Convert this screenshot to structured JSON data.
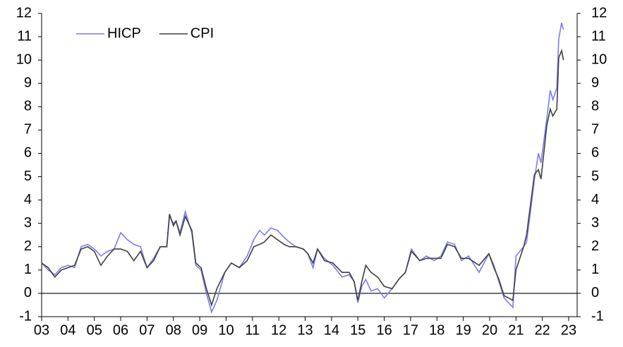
{
  "chart_data": {
    "type": "line",
    "x": [
      3.0,
      3.25,
      3.5,
      3.75,
      4.0,
      4.25,
      4.5,
      4.75,
      5.0,
      5.25,
      5.5,
      5.75,
      6.0,
      6.25,
      6.5,
      6.75,
      7.0,
      7.25,
      7.5,
      7.75,
      7.85,
      8.0,
      8.1,
      8.25,
      8.45,
      8.7,
      8.85,
      9.05,
      9.25,
      9.45,
      9.65,
      9.95,
      10.2,
      10.5,
      10.8,
      11.05,
      11.27,
      11.45,
      11.7,
      11.95,
      12.2,
      12.4,
      12.65,
      12.93,
      13.1,
      13.3,
      13.47,
      13.73,
      14.05,
      14.4,
      14.67,
      14.86,
      15.0,
      15.15,
      15.3,
      15.5,
      15.75,
      16.0,
      16.3,
      16.55,
      16.8,
      17.03,
      17.35,
      17.6,
      17.9,
      18.15,
      18.4,
      18.67,
      18.93,
      19.2,
      19.6,
      19.97,
      20.16,
      20.35,
      20.55,
      20.88,
      21.0,
      21.29,
      21.4,
      21.55,
      21.7,
      21.85,
      21.95,
      22.17,
      22.3,
      22.4,
      22.55,
      22.62,
      22.73,
      22.8
    ],
    "series": [
      {
        "name": "HICP",
        "color": "#7b7bf0",
        "values": [
          1.3,
          1.0,
          0.8,
          1.1,
          1.2,
          1.1,
          2.0,
          2.1,
          1.9,
          1.6,
          1.8,
          1.9,
          2.6,
          2.3,
          2.1,
          2.0,
          1.1,
          1.5,
          2.0,
          2.0,
          3.3,
          3.0,
          3.1,
          2.6,
          3.5,
          2.6,
          1.2,
          1.0,
          0.0,
          -0.8,
          -0.3,
          0.9,
          1.3,
          1.1,
          1.6,
          2.3,
          2.7,
          2.5,
          2.8,
          2.7,
          2.4,
          2.2,
          2.0,
          1.9,
          1.7,
          1.1,
          1.9,
          1.5,
          1.2,
          0.7,
          0.8,
          0.5,
          -0.4,
          0.3,
          0.6,
          0.1,
          0.2,
          -0.2,
          0.2,
          0.6,
          0.9,
          1.9,
          1.4,
          1.6,
          1.4,
          1.6,
          2.2,
          2.1,
          1.4,
          1.6,
          0.9,
          1.7,
          1.2,
          0.5,
          -0.2,
          -0.6,
          1.6,
          2.0,
          2.2,
          3.5,
          4.9,
          6.0,
          5.6,
          7.5,
          8.7,
          8.3,
          8.8,
          10.9,
          11.6,
          11.3
        ]
      },
      {
        "name": "CPI",
        "color": "#404040",
        "values": [
          1.3,
          1.1,
          0.7,
          1.0,
          1.1,
          1.2,
          1.9,
          2.0,
          1.8,
          1.2,
          1.6,
          1.9,
          1.9,
          1.8,
          1.4,
          1.8,
          1.1,
          1.4,
          2.0,
          2.0,
          3.4,
          2.9,
          3.1,
          2.5,
          3.3,
          2.7,
          1.3,
          1.1,
          0.2,
          -0.5,
          0.2,
          0.9,
          1.3,
          1.1,
          1.4,
          2.0,
          2.1,
          2.2,
          2.5,
          2.3,
          2.1,
          2.0,
          2.0,
          1.9,
          1.7,
          1.3,
          1.9,
          1.4,
          1.3,
          0.9,
          0.9,
          0.5,
          -0.3,
          0.5,
          1.2,
          0.9,
          0.7,
          0.3,
          0.2,
          0.6,
          0.9,
          1.8,
          1.4,
          1.5,
          1.5,
          1.5,
          2.1,
          2.0,
          1.5,
          1.5,
          1.2,
          1.7,
          1.1,
          0.6,
          -0.1,
          -0.3,
          1.0,
          2.0,
          2.5,
          3.8,
          5.1,
          5.3,
          4.9,
          7.2,
          7.9,
          7.6,
          7.9,
          10.1,
          10.4,
          10.0
        ]
      }
    ],
    "xlim": [
      3,
      23.32
    ],
    "xticks": [
      {
        "value": 3,
        "label": "03"
      },
      {
        "value": 4,
        "label": "04"
      },
      {
        "value": 5,
        "label": "05"
      },
      {
        "value": 6,
        "label": "06"
      },
      {
        "value": 7,
        "label": "07"
      },
      {
        "value": 8,
        "label": "08"
      },
      {
        "value": 9,
        "label": "09"
      },
      10,
      11,
      12,
      13,
      14,
      15,
      16,
      17,
      18,
      19,
      20,
      21,
      22,
      23
    ],
    "ylim": [
      -1,
      12
    ],
    "yticks": [
      -1,
      0,
      1,
      2,
      3,
      4,
      5,
      6,
      7,
      8,
      9,
      10,
      11,
      12
    ],
    "reference_line": 0,
    "legend": "top-left"
  }
}
